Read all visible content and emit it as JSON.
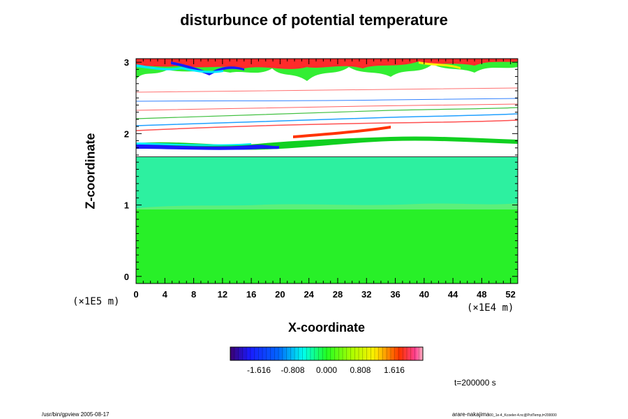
{
  "chart_data": {
    "type": "heatmap",
    "title": "disturbunce of potential temperature",
    "xlabel": "X-coordinate",
    "ylabel": "Z-coordinate",
    "x_unit": "(×1E4 m)",
    "y_unit": "(×1E5 m)",
    "x_ticks": [
      "0",
      "4",
      "8",
      "12",
      "16",
      "20",
      "24",
      "28",
      "32",
      "36",
      "40",
      "44",
      "48",
      "52"
    ],
    "y_ticks": [
      "0",
      "1",
      "2",
      "3"
    ],
    "xlim": [
      0,
      53
    ],
    "ylim": [
      -0.1,
      3.05
    ],
    "colorbar": {
      "range": [
        -2.3,
        2.3
      ],
      "tick_labels": [
        "-1.616",
        "-0.808",
        "0.000",
        "0.808",
        "1.616"
      ],
      "tick_values": [
        -1.616,
        -0.808,
        0.0,
        0.808,
        1.616
      ]
    },
    "fields": [
      {
        "region": "z 0 to 0.95",
        "approx_value": 0.3
      },
      {
        "region": "z 0.95 to 1.68",
        "approx_value": -0.3
      },
      {
        "region": "z 1.68 to 1.85 (blank)",
        "approx_value": null
      },
      {
        "region": "z 1.85 to 1.92 (strong negative band)",
        "approx_value": -1.6
      },
      {
        "region": "z 2.95 to 3.05 (top disturbed layer)",
        "approx_value": "mixed -2.0 to 2.0"
      }
    ]
  },
  "footer": {
    "time": "t=200000 s",
    "left_note": "/usr/bin/gpview 2005-08-17",
    "right_note_main": "arare-nakajima",
    "right_note_sub": "00_1e-4_Kcoeler-4.nc@PotTemp,t=200000"
  }
}
